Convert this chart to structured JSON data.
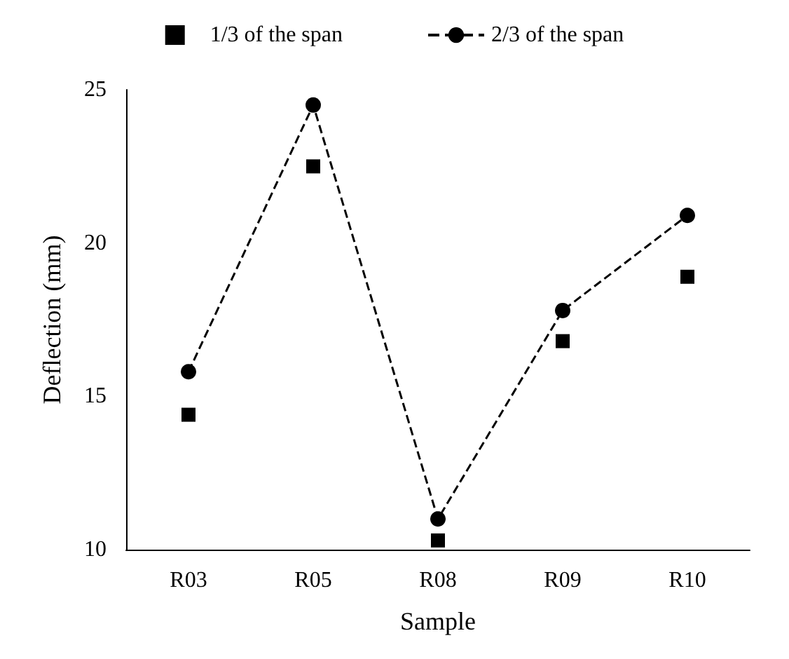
{
  "chart_data": {
    "type": "scatter",
    "xlabel": "Sample",
    "ylabel": "Deflection (mm)",
    "categories": [
      "R03",
      "R05",
      "R08",
      "R09",
      "R10"
    ],
    "series": [
      {
        "name": "1/3 of the span",
        "color": "#000000",
        "marker": "square",
        "values": [
          14.4,
          22.5,
          10.3,
          16.8,
          18.9
        ]
      },
      {
        "name": "2/3 of the span",
        "type": "line",
        "color": "#000000",
        "marker": "circle",
        "line_style": "dashed",
        "values": [
          15.8,
          24.5,
          11.0,
          17.8,
          20.9
        ]
      }
    ],
    "ylim": [
      10,
      25
    ],
    "yticks": [
      10,
      15,
      20,
      25
    ],
    "grid": false,
    "legend": "top"
  }
}
